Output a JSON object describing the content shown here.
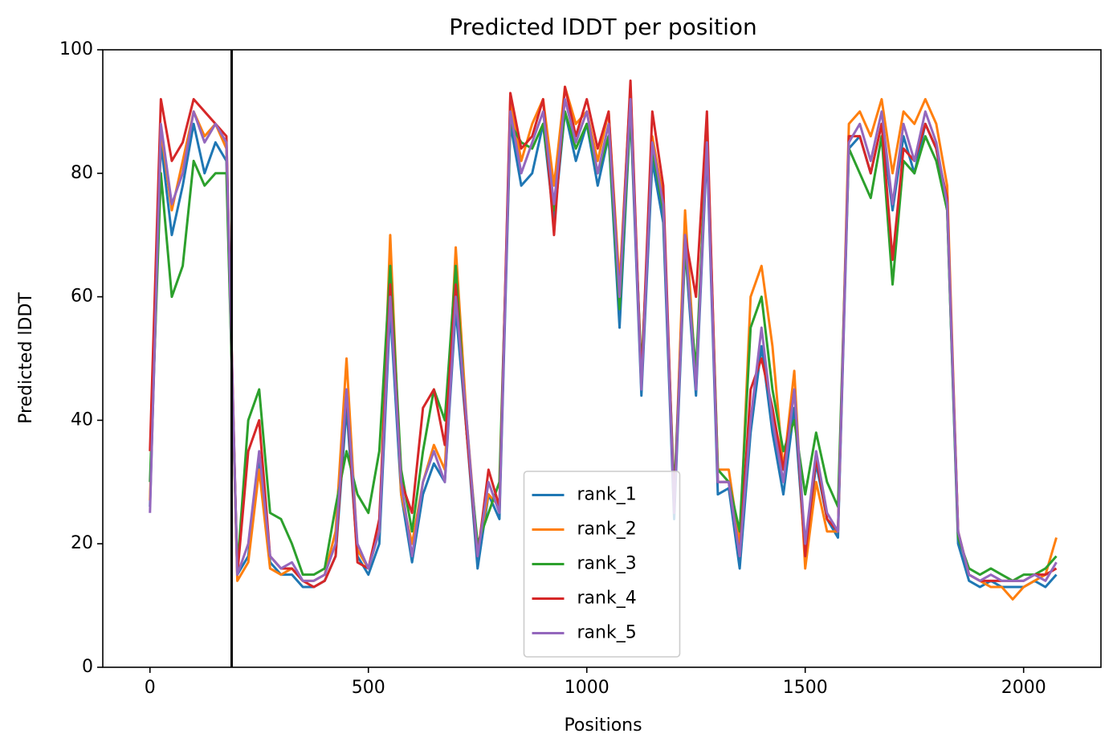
{
  "chart_data": {
    "type": "line",
    "title": "Predicted lDDT per position",
    "xlabel": "Positions",
    "ylabel": "Predicted lDDT",
    "x": [
      0,
      25,
      50,
      75,
      100,
      125,
      150,
      175,
      200,
      225,
      250,
      275,
      300,
      325,
      350,
      375,
      400,
      425,
      450,
      475,
      500,
      525,
      550,
      575,
      600,
      625,
      650,
      675,
      700,
      725,
      750,
      775,
      800,
      825,
      850,
      875,
      900,
      925,
      950,
      975,
      1000,
      1025,
      1050,
      1075,
      1100,
      1125,
      1150,
      1175,
      1200,
      1225,
      1250,
      1275,
      1300,
      1325,
      1350,
      1375,
      1400,
      1425,
      1450,
      1475,
      1500,
      1525,
      1550,
      1575,
      1600,
      1625,
      1650,
      1675,
      1700,
      1725,
      1750,
      1775,
      1800,
      1825,
      1850,
      1875,
      1900,
      1925,
      1950,
      1975,
      2000,
      2025,
      2050,
      2075
    ],
    "series": [
      {
        "name": "rank_1",
        "color": "#1f77b4",
        "values": [
          26,
          85,
          70,
          78,
          88,
          80,
          85,
          82,
          15,
          18,
          33,
          17,
          15,
          15,
          13,
          13,
          14,
          18,
          42,
          18,
          15,
          20,
          58,
          28,
          17,
          28,
          33,
          30,
          58,
          38,
          16,
          28,
          24,
          88,
          78,
          80,
          88,
          72,
          90,
          82,
          88,
          78,
          86,
          55,
          90,
          44,
          82,
          72,
          24,
          68,
          44,
          84,
          28,
          29,
          16,
          38,
          52,
          38,
          28,
          42,
          18,
          33,
          24,
          21,
          84,
          86,
          80,
          88,
          74,
          86,
          80,
          88,
          84,
          74,
          20,
          14,
          13,
          14,
          13,
          13,
          13,
          14,
          13,
          15
        ]
      },
      {
        "name": "rank_2",
        "color": "#ff7f0e",
        "values": [
          27,
          87,
          74,
          82,
          90,
          86,
          88,
          84,
          14,
          17,
          32,
          16,
          15,
          16,
          14,
          14,
          15,
          22,
          50,
          19,
          16,
          22,
          70,
          28,
          20,
          30,
          36,
          32,
          68,
          40,
          19,
          28,
          26,
          92,
          82,
          88,
          92,
          78,
          94,
          88,
          90,
          82,
          90,
          62,
          94,
          46,
          86,
          76,
          26,
          74,
          46,
          88,
          32,
          32,
          20,
          60,
          65,
          52,
          32,
          48,
          16,
          30,
          22,
          22,
          88,
          90,
          86,
          92,
          80,
          90,
          88,
          92,
          88,
          78,
          22,
          15,
          14,
          13,
          13,
          11,
          13,
          14,
          15,
          21
        ]
      },
      {
        "name": "rank_3",
        "color": "#2ca02c",
        "values": [
          30,
          80,
          60,
          65,
          82,
          78,
          80,
          80,
          16,
          40,
          45,
          25,
          24,
          20,
          15,
          15,
          16,
          26,
          35,
          28,
          25,
          35,
          65,
          32,
          22,
          35,
          45,
          40,
          65,
          38,
          20,
          25,
          30,
          88,
          85,
          84,
          88,
          74,
          90,
          84,
          88,
          80,
          86,
          58,
          90,
          48,
          84,
          74,
          28,
          68,
          48,
          86,
          32,
          30,
          22,
          55,
          60,
          45,
          35,
          40,
          28,
          38,
          30,
          26,
          84,
          80,
          76,
          86,
          62,
          82,
          80,
          86,
          82,
          74,
          21,
          16,
          15,
          16,
          15,
          14,
          15,
          15,
          16,
          18
        ]
      },
      {
        "name": "rank_4",
        "color": "#d62728",
        "values": [
          35,
          92,
          82,
          85,
          92,
          90,
          88,
          86,
          15,
          35,
          40,
          18,
          16,
          16,
          14,
          13,
          14,
          18,
          45,
          17,
          16,
          24,
          62,
          30,
          25,
          42,
          45,
          36,
          62,
          38,
          18,
          32,
          26,
          93,
          84,
          86,
          92,
          70,
          94,
          86,
          92,
          84,
          90,
          60,
          95,
          46,
          90,
          78,
          26,
          70,
          60,
          90,
          30,
          30,
          18,
          45,
          50,
          42,
          32,
          45,
          18,
          34,
          24,
          22,
          86,
          86,
          80,
          88,
          66,
          84,
          82,
          88,
          84,
          76,
          22,
          15,
          14,
          14,
          14,
          14,
          14,
          15,
          15,
          16
        ]
      },
      {
        "name": "rank_5",
        "color": "#9467bd",
        "values": [
          25,
          88,
          75,
          80,
          90,
          85,
          88,
          85,
          15,
          20,
          35,
          18,
          16,
          17,
          14,
          14,
          15,
          20,
          45,
          20,
          16,
          22,
          60,
          30,
          18,
          30,
          35,
          30,
          60,
          40,
          18,
          30,
          25,
          90,
          80,
          85,
          90,
          75,
          92,
          85,
          90,
          80,
          88,
          60,
          92,
          45,
          85,
          75,
          25,
          70,
          45,
          85,
          30,
          30,
          18,
          40,
          55,
          40,
          30,
          45,
          20,
          35,
          25,
          22,
          85,
          88,
          82,
          90,
          75,
          88,
          82,
          90,
          85,
          75,
          22,
          15,
          14,
          15,
          14,
          14,
          14,
          15,
          14,
          17
        ]
      }
    ],
    "vlines": [
      187
    ],
    "vline_color": "#000000",
    "xlim": [
      -108,
      2177
    ],
    "ylim": [
      0,
      100
    ],
    "xticks": [
      0,
      500,
      1000,
      1500,
      2000
    ],
    "yticks": [
      0,
      20,
      40,
      60,
      80,
      100
    ],
    "grid": false,
    "legend": "lower center"
  }
}
